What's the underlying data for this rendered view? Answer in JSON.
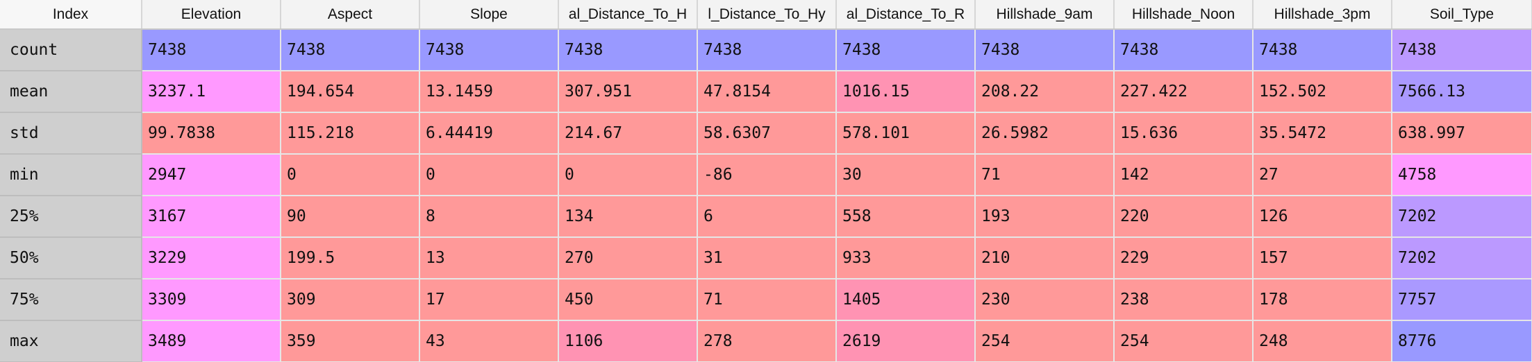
{
  "colors": {
    "blue": "#9999ff",
    "magenta": "#ff99ff",
    "salmon": "#ff9999",
    "pink": "#ff93b3",
    "lavender": "#bb99ff",
    "violet": "#aa99ff",
    "deep_violet": "#9999ff",
    "row_label_bg": "#cfcfcf",
    "header_bg": "#f3f3f3"
  },
  "table": {
    "index_header": "Index",
    "columns": [
      {
        "key": "elevation",
        "label": "Elevation"
      },
      {
        "key": "aspect",
        "label": "Aspect"
      },
      {
        "key": "slope",
        "label": "Slope"
      },
      {
        "key": "hdist_hyd",
        "label": "al_Distance_To_H"
      },
      {
        "key": "vdist_hyd",
        "label": "l_Distance_To_Hy"
      },
      {
        "key": "hdist_road",
        "label": "al_Distance_To_R"
      },
      {
        "key": "hs9",
        "label": "Hillshade_9am"
      },
      {
        "key": "hsnoon",
        "label": "Hillshade_Noon"
      },
      {
        "key": "hs3",
        "label": "Hillshade_3pm"
      },
      {
        "key": "soil",
        "label": "Soil_Type"
      }
    ],
    "rows": [
      {
        "label": "count",
        "cells": [
          {
            "v": "7438",
            "c": "#9999ff"
          },
          {
            "v": "7438",
            "c": "#9999ff"
          },
          {
            "v": "7438",
            "c": "#9999ff"
          },
          {
            "v": "7438",
            "c": "#9999ff"
          },
          {
            "v": "7438",
            "c": "#9999ff"
          },
          {
            "v": "7438",
            "c": "#9999ff"
          },
          {
            "v": "7438",
            "c": "#9999ff"
          },
          {
            "v": "7438",
            "c": "#9999ff"
          },
          {
            "v": "7438",
            "c": "#9999ff"
          },
          {
            "v": "7438",
            "c": "#bb99ff"
          }
        ]
      },
      {
        "label": "mean",
        "cells": [
          {
            "v": "3237.1",
            "c": "#ff99ff"
          },
          {
            "v": "194.654",
            "c": "#ff9999"
          },
          {
            "v": "13.1459",
            "c": "#ff9999"
          },
          {
            "v": "307.951",
            "c": "#ff9999"
          },
          {
            "v": "47.8154",
            "c": "#ff9999"
          },
          {
            "v": "1016.15",
            "c": "#ff93b3"
          },
          {
            "v": "208.22",
            "c": "#ff9999"
          },
          {
            "v": "227.422",
            "c": "#ff9999"
          },
          {
            "v": "152.502",
            "c": "#ff9999"
          },
          {
            "v": "7566.13",
            "c": "#aa99ff"
          }
        ]
      },
      {
        "label": "std",
        "cells": [
          {
            "v": "99.7838",
            "c": "#ff9999"
          },
          {
            "v": "115.218",
            "c": "#ff9999"
          },
          {
            "v": "6.44419",
            "c": "#ff9999"
          },
          {
            "v": "214.67",
            "c": "#ff9999"
          },
          {
            "v": "58.6307",
            "c": "#ff9999"
          },
          {
            "v": "578.101",
            "c": "#ff9999"
          },
          {
            "v": "26.5982",
            "c": "#ff9999"
          },
          {
            "v": "15.636",
            "c": "#ff9999"
          },
          {
            "v": "35.5472",
            "c": "#ff9999"
          },
          {
            "v": "638.997",
            "c": "#ff9999"
          }
        ]
      },
      {
        "label": "min",
        "cells": [
          {
            "v": "2947",
            "c": "#ff99ff"
          },
          {
            "v": "0",
            "c": "#ff9999"
          },
          {
            "v": "0",
            "c": "#ff9999"
          },
          {
            "v": "0",
            "c": "#ff9999"
          },
          {
            "v": "-86",
            "c": "#ff9999"
          },
          {
            "v": "30",
            "c": "#ff9999"
          },
          {
            "v": "71",
            "c": "#ff9999"
          },
          {
            "v": "142",
            "c": "#ff9999"
          },
          {
            "v": "27",
            "c": "#ff9999"
          },
          {
            "v": "4758",
            "c": "#ff99ff"
          }
        ]
      },
      {
        "label": "25%",
        "cells": [
          {
            "v": "3167",
            "c": "#ff99ff"
          },
          {
            "v": "90",
            "c": "#ff9999"
          },
          {
            "v": "8",
            "c": "#ff9999"
          },
          {
            "v": "134",
            "c": "#ff9999"
          },
          {
            "v": "6",
            "c": "#ff9999"
          },
          {
            "v": "558",
            "c": "#ff9999"
          },
          {
            "v": "193",
            "c": "#ff9999"
          },
          {
            "v": "220",
            "c": "#ff9999"
          },
          {
            "v": "126",
            "c": "#ff9999"
          },
          {
            "v": "7202",
            "c": "#bb99ff"
          }
        ]
      },
      {
        "label": "50%",
        "cells": [
          {
            "v": "3229",
            "c": "#ff99ff"
          },
          {
            "v": "199.5",
            "c": "#ff9999"
          },
          {
            "v": "13",
            "c": "#ff9999"
          },
          {
            "v": "270",
            "c": "#ff9999"
          },
          {
            "v": "31",
            "c": "#ff9999"
          },
          {
            "v": "933",
            "c": "#ff9999"
          },
          {
            "v": "210",
            "c": "#ff9999"
          },
          {
            "v": "229",
            "c": "#ff9999"
          },
          {
            "v": "157",
            "c": "#ff9999"
          },
          {
            "v": "7202",
            "c": "#bb99ff"
          }
        ]
      },
      {
        "label": "75%",
        "cells": [
          {
            "v": "3309",
            "c": "#ff99ff"
          },
          {
            "v": "309",
            "c": "#ff9999"
          },
          {
            "v": "17",
            "c": "#ff9999"
          },
          {
            "v": "450",
            "c": "#ff9999"
          },
          {
            "v": "71",
            "c": "#ff9999"
          },
          {
            "v": "1405",
            "c": "#ff93b3"
          },
          {
            "v": "230",
            "c": "#ff9999"
          },
          {
            "v": "238",
            "c": "#ff9999"
          },
          {
            "v": "178",
            "c": "#ff9999"
          },
          {
            "v": "7757",
            "c": "#aa99ff"
          }
        ]
      },
      {
        "label": "max",
        "cells": [
          {
            "v": "3489",
            "c": "#ff99ff"
          },
          {
            "v": "359",
            "c": "#ff9999"
          },
          {
            "v": "43",
            "c": "#ff9999"
          },
          {
            "v": "1106",
            "c": "#ff93b3"
          },
          {
            "v": "278",
            "c": "#ff9999"
          },
          {
            "v": "2619",
            "c": "#ff93b3"
          },
          {
            "v": "254",
            "c": "#ff9999"
          },
          {
            "v": "254",
            "c": "#ff9999"
          },
          {
            "v": "248",
            "c": "#ff9999"
          },
          {
            "v": "8776",
            "c": "#9999ff"
          }
        ]
      }
    ]
  }
}
